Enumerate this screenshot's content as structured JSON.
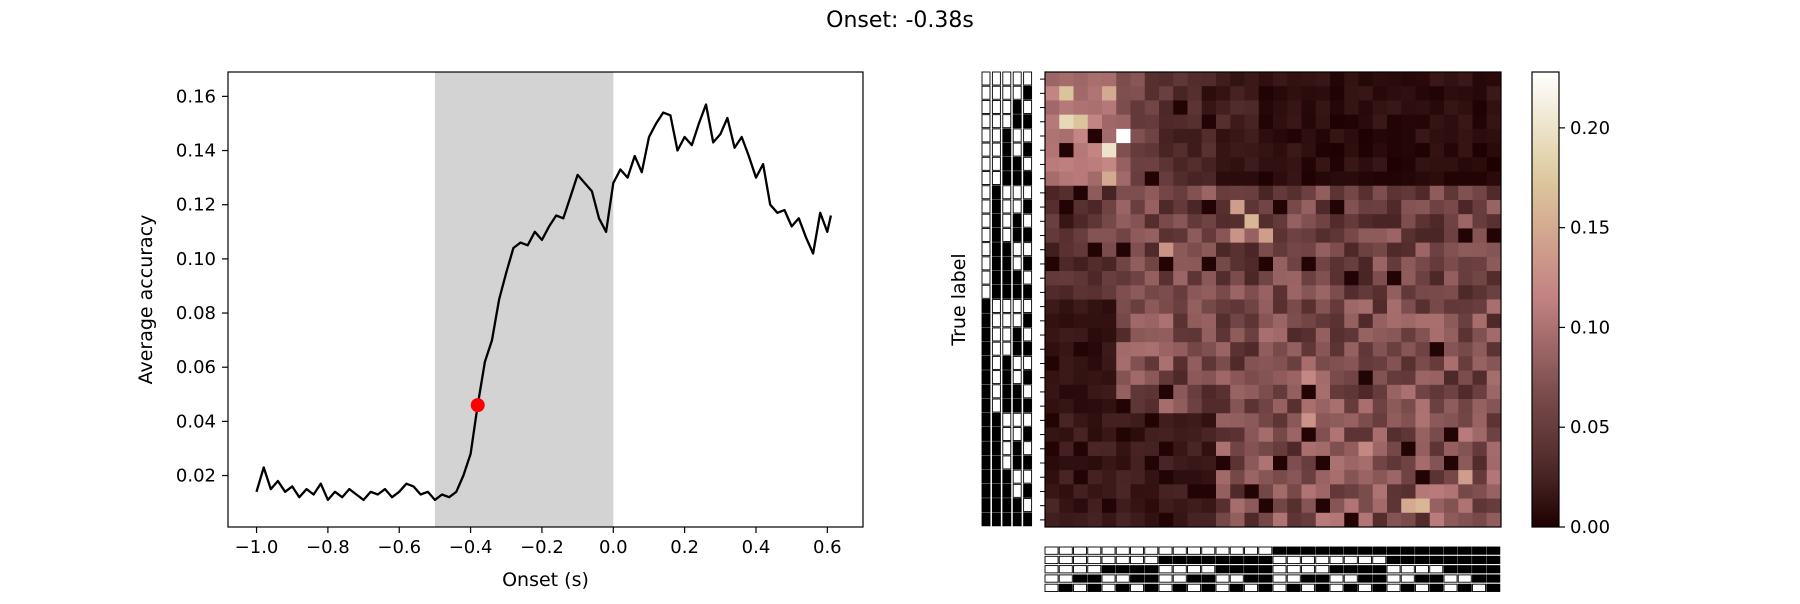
{
  "figure": {
    "suptitle": "Onset: -0.38s"
  },
  "chart_data": [
    {
      "type": "line",
      "xlabel": "Onset (s)",
      "ylabel": "Average accuracy",
      "xlim": [
        -1.08,
        0.7
      ],
      "ylim": [
        0.001,
        0.169
      ],
      "xticks": [
        -1.0,
        -0.8,
        -0.6,
        -0.4,
        -0.2,
        0.0,
        0.2,
        0.4,
        0.6
      ],
      "xtick_labels": [
        "−1.0",
        "−0.8",
        "−0.6",
        "−0.4",
        "−0.2",
        "0.0",
        "0.2",
        "0.4",
        "0.6"
      ],
      "yticks": [
        0.02,
        0.04,
        0.06,
        0.08,
        0.1,
        0.12,
        0.14,
        0.16
      ],
      "ytick_labels": [
        "0.02",
        "0.04",
        "0.06",
        "0.08",
        "0.10",
        "0.12",
        "0.14",
        "0.16"
      ],
      "shaded_region": {
        "x0": -0.5,
        "x1": 0.0,
        "color": "#d3d3d3"
      },
      "marker": {
        "x": -0.38,
        "y": 0.046,
        "color": "#ff0000"
      },
      "line_color": "#000000",
      "series": [
        {
          "x": [
            -1.0,
            -0.98,
            -0.96,
            -0.94,
            -0.92,
            -0.9,
            -0.88,
            -0.86,
            -0.84,
            -0.82,
            -0.8,
            -0.78,
            -0.76,
            -0.74,
            -0.72,
            -0.7,
            -0.68,
            -0.66,
            -0.64,
            -0.62,
            -0.6,
            -0.58,
            -0.56,
            -0.54,
            -0.52,
            -0.5,
            -0.48,
            -0.46,
            -0.44,
            -0.42,
            -0.4,
            -0.38,
            -0.36,
            -0.34,
            -0.32,
            -0.3,
            -0.28,
            -0.26,
            -0.24,
            -0.22,
            -0.2,
            -0.18,
            -0.16,
            -0.14,
            -0.12,
            -0.1,
            -0.08,
            -0.06,
            -0.04,
            -0.02,
            0.0,
            0.02,
            0.04,
            0.06,
            0.08,
            0.1,
            0.12,
            0.14,
            0.16,
            0.18,
            0.2,
            0.22,
            0.24,
            0.26,
            0.28,
            0.3,
            0.32,
            0.34,
            0.36,
            0.38,
            0.4,
            0.42,
            0.44,
            0.46,
            0.48,
            0.5,
            0.52,
            0.54,
            0.56,
            0.58,
            0.6,
            0.61
          ],
          "y": [
            0.014,
            0.023,
            0.015,
            0.018,
            0.014,
            0.016,
            0.012,
            0.015,
            0.013,
            0.017,
            0.011,
            0.014,
            0.012,
            0.015,
            0.013,
            0.011,
            0.014,
            0.013,
            0.015,
            0.012,
            0.014,
            0.017,
            0.016,
            0.013,
            0.014,
            0.011,
            0.013,
            0.012,
            0.014,
            0.02,
            0.028,
            0.046,
            0.062,
            0.07,
            0.085,
            0.095,
            0.104,
            0.106,
            0.105,
            0.11,
            0.107,
            0.112,
            0.116,
            0.115,
            0.123,
            0.131,
            0.128,
            0.125,
            0.115,
            0.11,
            0.128,
            0.133,
            0.13,
            0.138,
            0.132,
            0.145,
            0.15,
            0.154,
            0.153,
            0.14,
            0.145,
            0.142,
            0.15,
            0.157,
            0.143,
            0.146,
            0.152,
            0.141,
            0.145,
            0.138,
            0.13,
            0.135,
            0.12,
            0.117,
            0.118,
            0.112,
            0.115,
            0.108,
            0.102,
            0.117,
            0.11,
            0.116
          ]
        }
      ]
    },
    {
      "type": "heatmap",
      "ylabel": "True label",
      "colormap": "pink",
      "color_range": [
        0.0,
        0.228
      ],
      "n_rows": 32,
      "n_cols": 32,
      "colorbar": {
        "ticks": [
          0.0,
          0.05,
          0.1,
          0.15,
          0.2
        ],
        "tick_labels": [
          "0.00",
          "0.05",
          "0.10",
          "0.15",
          "0.20"
        ]
      },
      "peaks": [
        {
          "row": 1,
          "col": 1,
          "value": 0.17
        },
        {
          "row": 3,
          "col": 1,
          "value": 0.19
        },
        {
          "row": 3,
          "col": 2,
          "value": 0.17
        },
        {
          "row": 1,
          "col": 4,
          "value": 0.15
        },
        {
          "row": 4,
          "col": 5,
          "value": 0.228
        },
        {
          "row": 5,
          "col": 4,
          "value": 0.2
        },
        {
          "row": 7,
          "col": 4,
          "value": 0.15
        },
        {
          "row": 9,
          "col": 13,
          "value": 0.14
        },
        {
          "row": 10,
          "col": 14,
          "value": 0.16
        },
        {
          "row": 11,
          "col": 13,
          "value": 0.13
        },
        {
          "row": 11,
          "col": 15,
          "value": 0.14
        },
        {
          "row": 12,
          "col": 8,
          "value": 0.13
        },
        {
          "row": 21,
          "col": 18,
          "value": 0.12
        },
        {
          "row": 24,
          "col": 18,
          "value": 0.13
        },
        {
          "row": 26,
          "col": 22,
          "value": 0.12
        },
        {
          "row": 28,
          "col": 29,
          "value": 0.14
        },
        {
          "row": 30,
          "col": 25,
          "value": 0.15
        },
        {
          "row": 30,
          "col": 26,
          "value": 0.16
        }
      ]
    }
  ]
}
